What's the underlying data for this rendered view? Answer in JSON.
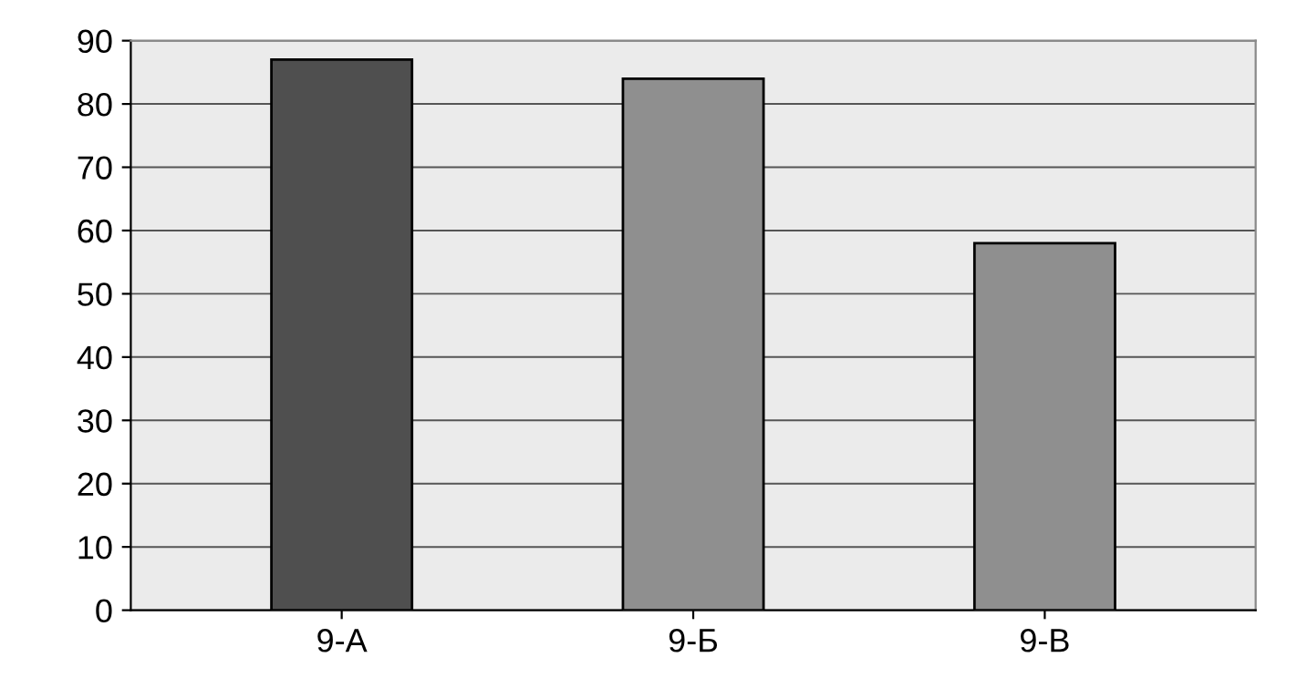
{
  "chart_data": {
    "type": "bar",
    "categories": [
      "9-А",
      "9-Б",
      "9-В"
    ],
    "values": [
      87,
      84,
      58
    ],
    "colors": [
      "#4f4f4f",
      "#8f8f8f",
      "#8f8f8f"
    ],
    "ylim": [
      0,
      90
    ],
    "yticks": [
      0,
      10,
      20,
      30,
      40,
      50,
      60,
      70,
      80,
      90
    ],
    "grid": "y",
    "legend": false
  }
}
